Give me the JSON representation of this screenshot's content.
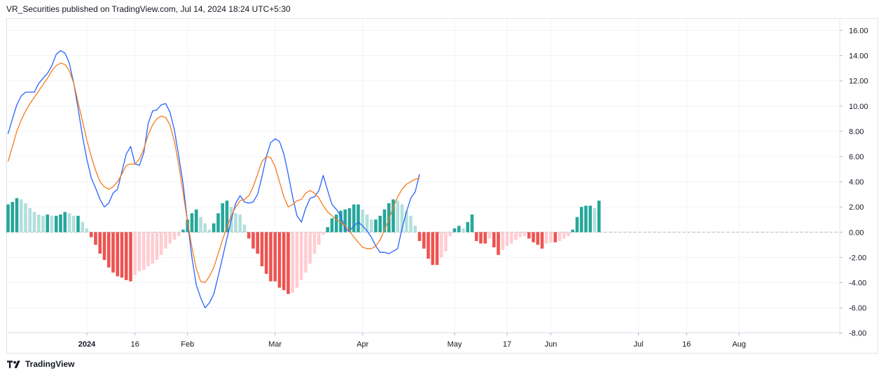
{
  "header": {
    "text": "VR_Securities published on TradingView.com, Jul 14, 2024 18:24 UTC+5:30"
  },
  "footer": {
    "brand": "TradingView",
    "logo_icon": "tradingview-logo-icon"
  },
  "colors": {
    "macd": "#2962ff",
    "signal": "#f57c1f",
    "hist_pos_strong": "#26a69a",
    "hist_pos_weak": "#b2dfdb",
    "hist_neg_strong": "#ef5350",
    "hist_neg_weak": "#ffcdd2",
    "grid": "#f0f3fa",
    "zero_line": "#b2b5be"
  },
  "chart_data": {
    "type": "line",
    "indicator": "MACD",
    "ylim": [
      -8,
      16
    ],
    "grid": true,
    "y_ticks": [
      "16.00",
      "14.00",
      "12.00",
      "10.00",
      "8.00",
      "6.00",
      "4.00",
      "2.00",
      "0.00",
      "-2.00",
      "-4.00",
      "-6.00",
      "-8.00"
    ],
    "y_tick_values": [
      16,
      14,
      12,
      10,
      8,
      6,
      4,
      2,
      0,
      -2,
      -4,
      -6,
      -8
    ],
    "x_ticks": [
      {
        "label": "2024",
        "index": 18,
        "bold": true
      },
      {
        "label": "16",
        "index": 29
      },
      {
        "label": "Feb",
        "index": 41
      },
      {
        "label": "Mar",
        "index": 61
      },
      {
        "label": "Apr",
        "index": 81
      },
      {
        "label": "May",
        "index": 102
      },
      {
        "label": "17",
        "index": 114
      },
      {
        "label": "Jun",
        "index": 124
      },
      {
        "label": "Jul",
        "index": 144
      },
      {
        "label": "16",
        "index": 155
      },
      {
        "label": "Aug",
        "index": 167
      }
    ],
    "series": [
      {
        "kind": "line",
        "color": "#2962ff",
        "values": [
          7.8,
          9.0,
          10.1,
          10.8,
          11.1,
          11.1,
          11.1,
          11.8,
          12.2,
          12.6,
          13.2,
          14.1,
          14.4,
          14.2,
          13.4,
          11.8,
          9.8,
          7.6,
          5.8,
          4.3,
          3.5,
          2.6,
          2.0,
          2.3,
          3.1,
          3.4,
          4.8,
          6.2,
          6.8,
          5.4,
          5.3,
          6.3,
          8.6,
          9.6,
          9.7,
          10.1,
          10.2,
          9.5,
          8.1,
          6.0,
          3.8,
          0.8,
          -2.0,
          -4.2,
          -5.2,
          -6.0,
          -5.6,
          -4.9,
          -3.5,
          -2.0,
          -0.5,
          1.0,
          2.3,
          2.9,
          2.4,
          2.3,
          2.4,
          3.0,
          4.4,
          6.0,
          7.1,
          7.4,
          7.2,
          6.2,
          4.6,
          2.8,
          1.3,
          0.8,
          1.9,
          2.7,
          2.8,
          3.3,
          4.5,
          3.3,
          2.2,
          1.8,
          1.3,
          0.2,
          0.1,
          0.5,
          0.8,
          0.5,
          0.1,
          -0.4,
          -1.1,
          -1.6,
          -1.6,
          -1.7,
          -1.5,
          -1.3,
          0.3,
          1.6,
          2.7,
          3.2,
          4.6
        ]
      },
      {
        "kind": "line",
        "color": "#f57c1f",
        "values": [
          5.6,
          6.8,
          8.0,
          8.9,
          9.6,
          10.2,
          10.7,
          11.2,
          11.7,
          12.2,
          12.8,
          13.2,
          13.4,
          13.3,
          12.8,
          11.8,
          10.3,
          8.8,
          7.3,
          6.0,
          4.9,
          4.0,
          3.6,
          3.4,
          3.6,
          4.0,
          4.6,
          5.3,
          5.4,
          5.4,
          5.8,
          6.6,
          7.7,
          8.5,
          9.0,
          9.2,
          9.1,
          8.5,
          7.2,
          5.3,
          3.1,
          0.8,
          -1.2,
          -2.9,
          -3.9,
          -4.0,
          -3.5,
          -2.8,
          -1.7,
          -0.6,
          0.4,
          1.3,
          2.0,
          2.5,
          2.6,
          2.9,
          3.6,
          4.6,
          5.6,
          6.0,
          5.9,
          5.2,
          4.0,
          2.8,
          2.0,
          2.2,
          2.5,
          2.6,
          3.1,
          3.3,
          3.1,
          2.7,
          2.1,
          1.6,
          1.3,
          1.0,
          0.8,
          0.5,
          0.1,
          -0.4,
          -0.8,
          -1.2,
          -1.3,
          -1.3,
          -1.1,
          -0.6,
          0.2,
          1.0,
          2.0,
          2.8,
          3.4,
          3.8,
          4.0,
          4.2,
          4.3
        ]
      },
      {
        "kind": "histogram",
        "values": [
          2.2,
          2.4,
          2.7,
          2.6,
          2.3,
          1.9,
          1.6,
          1.4,
          1.3,
          1.4,
          1.3,
          1.3,
          1.4,
          1.6,
          1.5,
          1.3,
          1.3,
          0.8,
          0.3,
          -0.4,
          -1.0,
          -1.7,
          -2.2,
          -2.8,
          -3.2,
          -3.5,
          -3.6,
          -3.8,
          -3.9,
          -3.4,
          -3.1,
          -3.0,
          -2.7,
          -2.5,
          -2.2,
          -1.8,
          -1.3,
          -0.9,
          -0.6,
          -0.3,
          0.2,
          1.0,
          1.5,
          1.8,
          1.2,
          0.7,
          0.2,
          0.7,
          1.5,
          2.3,
          2.5,
          2.0,
          1.5,
          1.4,
          0.6,
          -0.5,
          -1.3,
          -1.7,
          -2.7,
          -3.3,
          -3.9,
          -3.9,
          -4.4,
          -4.6,
          -4.9,
          -4.8,
          -4.4,
          -3.8,
          -3.2,
          -2.5,
          -1.7,
          -1.0,
          -0.2,
          0.4,
          1.1,
          1.4,
          1.7,
          1.8,
          1.9,
          2.2,
          2.2,
          1.8,
          1.4,
          1.0,
          1.0,
          1.3,
          1.8,
          2.3,
          2.6,
          2.5,
          2.2,
          1.7,
          1.3,
          0.5,
          -0.7,
          -1.3,
          -2.1,
          -2.6,
          -2.6,
          -2.0,
          -1.5,
          -0.3,
          0.3,
          0.5,
          0.3,
          0.8,
          1.4,
          -0.7,
          -0.9,
          -0.9,
          -0.5,
          -1.2,
          -1.8,
          -1.4,
          -1.1,
          -0.9,
          -0.6,
          -0.4,
          -0.3,
          -0.5,
          -0.8,
          -1.0,
          -1.3,
          -0.9,
          -0.8,
          -0.8,
          -0.7,
          -0.5,
          -0.3,
          0.2,
          1.2,
          2.0,
          2.1,
          2.1,
          1.9,
          2.5
        ]
      }
    ]
  }
}
